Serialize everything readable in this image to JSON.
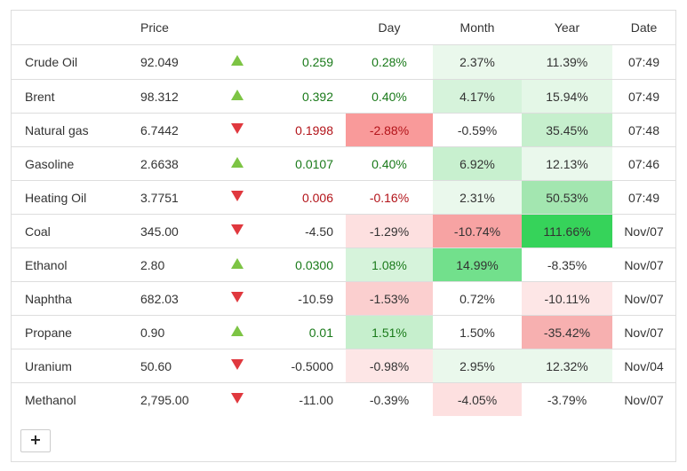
{
  "headers": {
    "name": "",
    "price": "Price",
    "arrow": "",
    "change": "",
    "day": "Day",
    "month": "Month",
    "year": "Year",
    "date": "Date"
  },
  "colors": {
    "up_text": "#1a7a1a",
    "down_text": "#b3141a",
    "arrow_up": "#7dc444",
    "arrow_down": "#e0383e"
  },
  "rows": [
    {
      "name": "Crude Oil",
      "price": "92.049",
      "dir": "up",
      "change": "0.259",
      "day": "0.28%",
      "month": "2.37%",
      "year": "11.39%",
      "date": "07:49",
      "day_bg": "#ffffff",
      "month_bg": "#eaf8ec",
      "year_bg": "#eaf8ec"
    },
    {
      "name": "Brent",
      "price": "98.312",
      "dir": "up",
      "change": "0.392",
      "day": "0.40%",
      "month": "4.17%",
      "year": "15.94%",
      "date": "07:49",
      "day_bg": "#ffffff",
      "month_bg": "#d6f3db",
      "year_bg": "#e4f7e7"
    },
    {
      "name": "Natural gas",
      "price": "6.7442",
      "dir": "down",
      "change": "0.1998",
      "day": "-2.88%",
      "month": "-0.59%",
      "year": "35.45%",
      "date": "07:48",
      "day_bg": "#f99a9a",
      "month_bg": "#ffffff",
      "year_bg": "#c6efcd"
    },
    {
      "name": "Gasoline",
      "price": "2.6638",
      "dir": "up",
      "change": "0.0107",
      "day": "0.40%",
      "month": "6.92%",
      "year": "12.13%",
      "date": "07:46",
      "day_bg": "#ffffff",
      "month_bg": "#c8f0cf",
      "year_bg": "#eaf8ec"
    },
    {
      "name": "Heating Oil",
      "price": "3.7751",
      "dir": "down",
      "change": "0.006",
      "day": "-0.16%",
      "month": "2.31%",
      "year": "50.53%",
      "date": "07:49",
      "day_bg": "#ffffff",
      "month_bg": "#eaf8ec",
      "year_bg": "#a3e6b0"
    },
    {
      "name": "Coal",
      "price": "345.00",
      "dir": "down",
      "change": "-4.50",
      "day": "-1.29%",
      "month": "-10.74%",
      "year": "111.66%",
      "date": "Nov/07",
      "day_bg": "#fde0e0",
      "month_bg": "#f7a3a3",
      "year_bg": "#36d35a"
    },
    {
      "name": "Ethanol",
      "price": "2.80",
      "dir": "up",
      "change": "0.0300",
      "day": "1.08%",
      "month": "14.99%",
      "year": "-8.35%",
      "date": "Nov/07",
      "day_bg": "#d6f3db",
      "month_bg": "#72e08c",
      "year_bg": "#ffffff"
    },
    {
      "name": "Naphtha",
      "price": "682.03",
      "dir": "down",
      "change": "-10.59",
      "day": "-1.53%",
      "month": "0.72%",
      "year": "-10.11%",
      "date": "Nov/07",
      "day_bg": "#fbcfcf",
      "month_bg": "#ffffff",
      "year_bg": "#fde6e6"
    },
    {
      "name": "Propane",
      "price": "0.90",
      "dir": "up",
      "change": "0.01",
      "day": "1.51%",
      "month": "1.50%",
      "year": "-35.42%",
      "date": "Nov/07",
      "day_bg": "#c6efcd",
      "month_bg": "#ffffff",
      "year_bg": "#f7b0b0"
    },
    {
      "name": "Uranium",
      "price": "50.60",
      "dir": "down",
      "change": "-0.5000",
      "day": "-0.98%",
      "month": "2.95%",
      "year": "12.32%",
      "date": "Nov/04",
      "day_bg": "#fde6e6",
      "month_bg": "#eaf8ec",
      "year_bg": "#eaf8ec"
    },
    {
      "name": "Methanol",
      "price": "2,795.00",
      "dir": "down",
      "change": "-11.00",
      "day": "-0.39%",
      "month": "-4.05%",
      "year": "-3.79%",
      "date": "Nov/07",
      "day_bg": "#ffffff",
      "month_bg": "#fde0e0",
      "year_bg": "#ffffff"
    }
  ],
  "add_button": {
    "label": "+"
  }
}
